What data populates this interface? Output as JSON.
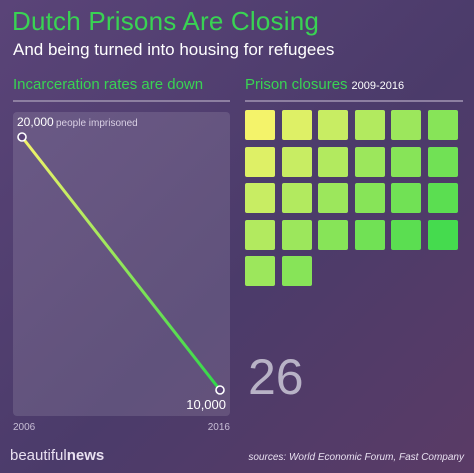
{
  "header": {
    "title": "Dutch Prisons Are Closing",
    "subtitle": "And being turned into housing for refugees"
  },
  "left_section": {
    "heading": "Incarceration rates are down"
  },
  "right_section": {
    "heading": "Prison closures",
    "heading_years": "2009-2016",
    "total": "26"
  },
  "footer": {
    "brand_light": "beautiful",
    "brand_bold": "news",
    "sources": "sources: World Economic Forum, Fast Company"
  },
  "colors": {
    "accent_green": "#39d353",
    "line_start": "#f4f36a",
    "line_end": "#2fd84a"
  },
  "chart_data": [
    {
      "type": "line",
      "x": [
        "2006",
        "2016"
      ],
      "series": [
        {
          "values": [
            20000,
            10000
          ]
        }
      ],
      "point_labels": [
        "20,000",
        "10,000"
      ],
      "start_label_suffix": "people imprisoned",
      "x_tick_labels": [
        "2006",
        "2016"
      ],
      "ylim": [
        10000,
        20000
      ],
      "grid": false
    },
    {
      "type": "table",
      "title": "Prison closures 2009-2016",
      "value": 26,
      "rows": [
        6,
        6,
        6,
        6,
        2
      ]
    }
  ]
}
